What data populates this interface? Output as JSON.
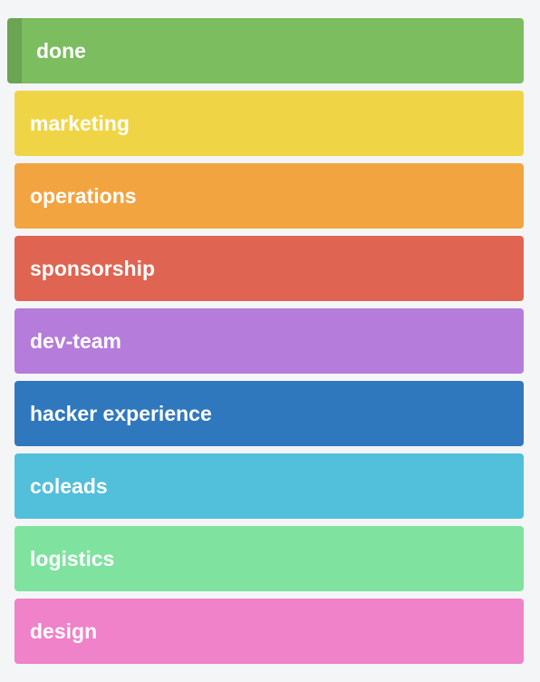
{
  "labels": [
    {
      "text": "done",
      "color": "#7bbd5f",
      "selected": true
    },
    {
      "text": "marketing",
      "color": "#efd546"
    },
    {
      "text": "operations",
      "color": "#f2a441"
    },
    {
      "text": "sponsorship",
      "color": "#df6552"
    },
    {
      "text": "dev-team",
      "color": "#b57cdc"
    },
    {
      "text": "hacker experience",
      "color": "#3078bd"
    },
    {
      "text": "coleads",
      "color": "#52bfdb"
    },
    {
      "text": "logistics",
      "color": "#7fe39f"
    },
    {
      "text": "design",
      "color": "#ef82c8"
    }
  ]
}
